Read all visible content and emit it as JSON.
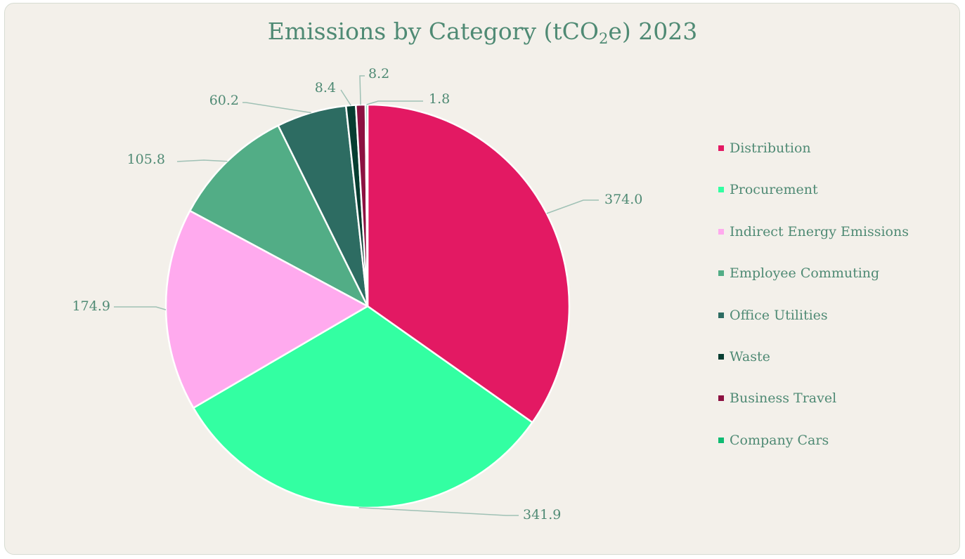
{
  "chart_data": {
    "type": "pie",
    "title": "Emissions by Category (tCO",
    "title_sub": "2",
    "title_after": "e) 2023",
    "legend_position": "right",
    "slices": [
      {
        "label": "Distribution",
        "value": 374.0,
        "display": "374.0",
        "color": "#e31963"
      },
      {
        "label": "Procurement",
        "value": 341.9,
        "display": "341.9",
        "color": "#33ffa2"
      },
      {
        "label": "Indirect Energy Emissions",
        "value": 174.9,
        "display": "174.9",
        "color": "#ffaaee"
      },
      {
        "label": "Employee Commuting",
        "value": 105.8,
        "display": "105.8",
        "color": "#52ad86"
      },
      {
        "label": "Office Utilities",
        "value": 60.2,
        "display": "60.2",
        "color": "#2d6c62"
      },
      {
        "label": "Waste",
        "value": 8.4,
        "display": "8.4",
        "color": "#073d31"
      },
      {
        "label": "Business Travel",
        "value": 8.2,
        "display": "8.2",
        "color": "#8c1141"
      },
      {
        "label": "Company Cars",
        "value": 1.8,
        "display": "1.8",
        "color": "#0fbc73"
      }
    ]
  }
}
